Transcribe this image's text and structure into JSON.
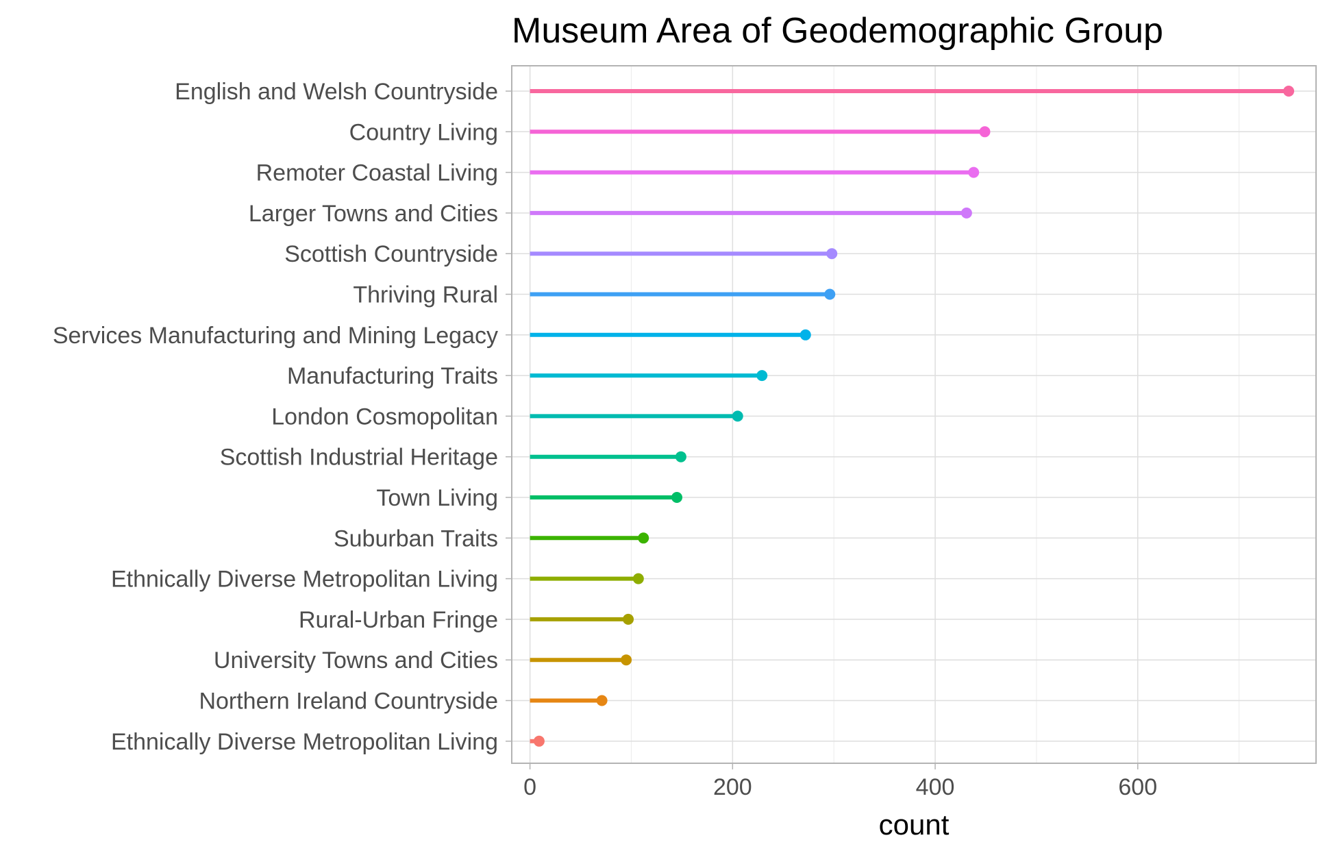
{
  "chart_data": {
    "type": "lollipop",
    "title": "Museum Area of Geodemographic Group",
    "xlabel": "count",
    "ylabel": "",
    "xlim": [
      -18,
      776
    ],
    "xticks": [
      0,
      200,
      400,
      600
    ],
    "grid": true,
    "orientation": "horizontal",
    "categories": [
      "English and Welsh Countryside",
      "Country Living",
      "Remoter Coastal Living",
      "Larger Towns and Cities",
      "Scottish Countryside",
      "Thriving Rural",
      "Services Manufacturing and Mining Legacy",
      "Manufacturing Traits",
      "London Cosmopolitan",
      "Scottish Industrial Heritage",
      "Town Living",
      "Suburban Traits",
      "Ethnically Diverse Metropolitan Living",
      "Rural-Urban Fringe",
      "University Towns and Cities",
      "Northern Ireland Countryside",
      "Ethnically Diverse Metropolitan  Living"
    ],
    "values": [
      749,
      449,
      438,
      431,
      298,
      296,
      272,
      229,
      205,
      149,
      145,
      112,
      107,
      97,
      95,
      71,
      9
    ],
    "colors": [
      "#F8679E",
      "#F564D6",
      "#EA6DF0",
      "#CF78FA",
      "#A58AFF",
      "#3EA0F4",
      "#00B2E9",
      "#00BAD2",
      "#00BBB0",
      "#00C08E",
      "#00BE67",
      "#3BB300",
      "#8EAD00",
      "#A6A000",
      "#C79400",
      "#E68613",
      "#F8766D"
    ]
  }
}
